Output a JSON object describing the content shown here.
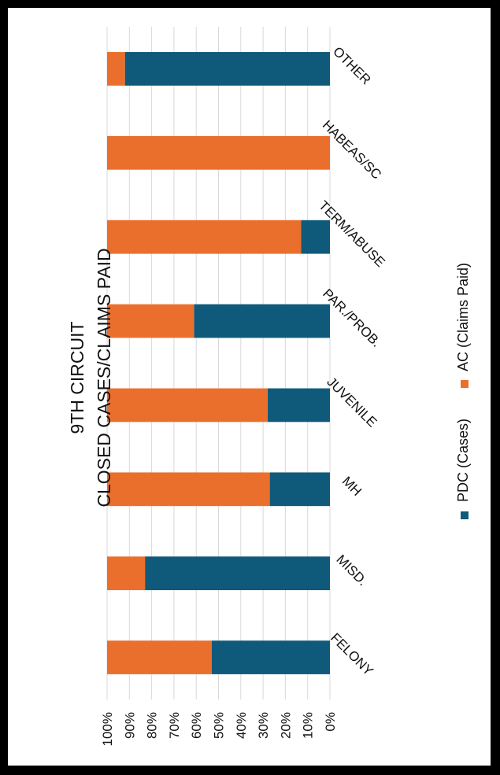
{
  "chart_data": {
    "type": "bar",
    "stacked": true,
    "percent_stacked": true,
    "orientation": "horizontal",
    "rotated": 90,
    "title": "9TH CIRCUIT",
    "subtitle": "CLOSED CASES/CLAIMS PAID",
    "categories": [
      "FELONY",
      "MISD.",
      "MH",
      "JUVENILE",
      "PAR./PROB.",
      "TERM/ABUSE",
      "HABEAS/SC",
      "OTHER"
    ],
    "series": [
      {
        "name": "PDC (Cases)",
        "color": "#0F5A7B",
        "values": [
          53,
          83,
          27,
          28,
          61,
          13,
          0,
          92
        ]
      },
      {
        "name": "AC (Claims Paid)",
        "color": "#EB6F2C",
        "values": [
          47,
          17,
          73,
          72,
          39,
          87,
          100,
          8
        ]
      }
    ],
    "ticks": [
      "0%",
      "10%",
      "20%",
      "30%",
      "40%",
      "50%",
      "60%",
      "70%",
      "80%",
      "90%",
      "100%"
    ],
    "xlim": [
      0,
      100
    ],
    "grid": true,
    "legend": "right"
  }
}
